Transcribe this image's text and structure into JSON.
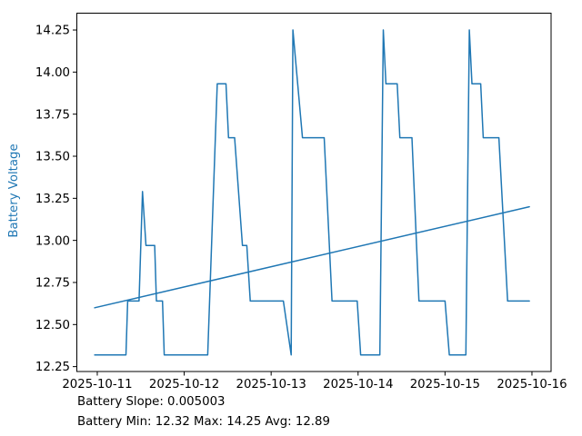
{
  "figure": {
    "background": "#ffffff",
    "accent_color": "#1f77b4",
    "text_color": "#000000"
  },
  "chart_data": {
    "type": "line",
    "title": "",
    "xlabel": "",
    "ylabel": "Battery Voltage",
    "ylabel_color": "#1f77b4",
    "line_color": "#1f77b4",
    "frame_color": "#000000",
    "tick_color": "#000000",
    "grid": false,
    "legend": "none",
    "x_unit": "days since 2025-10-11 00:00",
    "xlim": [
      -0.235,
      5.22
    ],
    "ylim": [
      12.221,
      14.35
    ],
    "x_ticks": [
      {
        "t": 0,
        "label": "2025-10-11"
      },
      {
        "t": 1,
        "label": "2025-10-12"
      },
      {
        "t": 2,
        "label": "2025-10-13"
      },
      {
        "t": 3,
        "label": "2025-10-14"
      },
      {
        "t": 4,
        "label": "2025-10-15"
      },
      {
        "t": 5,
        "label": "2025-10-16"
      }
    ],
    "y_ticks": [
      12.25,
      12.5,
      12.75,
      13.0,
      13.25,
      13.5,
      13.75,
      14.0,
      14.25
    ],
    "series": [
      {
        "name": "battery-voltage",
        "color": "#1f77b4",
        "width": 1.5,
        "points": [
          [
            -0.03,
            12.32
          ],
          [
            0.33,
            12.32
          ],
          [
            0.35,
            12.64
          ],
          [
            0.48,
            12.64
          ],
          [
            0.52,
            13.29
          ],
          [
            0.56,
            12.97
          ],
          [
            0.66,
            12.97
          ],
          [
            0.68,
            12.64
          ],
          [
            0.75,
            12.64
          ],
          [
            0.77,
            12.32
          ],
          [
            1.27,
            12.32
          ],
          [
            1.38,
            13.93
          ],
          [
            1.48,
            13.93
          ],
          [
            1.51,
            13.61
          ],
          [
            1.58,
            13.61
          ],
          [
            1.67,
            12.97
          ],
          [
            1.72,
            12.97
          ],
          [
            1.76,
            12.64
          ],
          [
            2.14,
            12.64
          ],
          [
            2.23,
            12.32
          ],
          [
            2.25,
            14.25
          ],
          [
            2.36,
            13.61
          ],
          [
            2.61,
            13.61
          ],
          [
            2.7,
            12.64
          ],
          [
            2.99,
            12.64
          ],
          [
            3.03,
            12.32
          ],
          [
            3.25,
            12.32
          ],
          [
            3.29,
            14.25
          ],
          [
            3.32,
            13.93
          ],
          [
            3.45,
            13.93
          ],
          [
            3.48,
            13.61
          ],
          [
            3.62,
            13.61
          ],
          [
            3.7,
            12.64
          ],
          [
            4.0,
            12.64
          ],
          [
            4.05,
            12.32
          ],
          [
            4.24,
            12.32
          ],
          [
            4.28,
            14.25
          ],
          [
            4.31,
            13.93
          ],
          [
            4.41,
            13.93
          ],
          [
            4.44,
            13.61
          ],
          [
            4.62,
            13.61
          ],
          [
            4.72,
            12.64
          ],
          [
            4.97,
            12.64
          ]
        ]
      },
      {
        "name": "trend-line",
        "color": "#1f77b4",
        "width": 1.5,
        "points": [
          [
            -0.03,
            12.6
          ],
          [
            4.97,
            13.2
          ]
        ]
      }
    ],
    "annotations": [
      "Battery Slope: 0.005003",
      "Battery Min: 12.32 Max: 14.25 Avg: 12.89"
    ],
    "stats": {
      "slope": 0.005003,
      "min": 12.32,
      "max": 14.25,
      "avg": 12.89
    }
  }
}
